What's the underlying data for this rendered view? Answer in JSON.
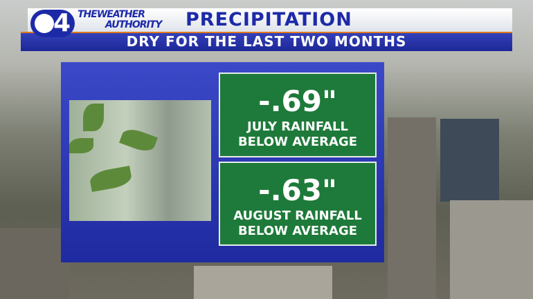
{
  "header": {
    "logo": "4",
    "brand": [
      "THEWEATHER",
      "AUTHORITY"
    ],
    "title": "PRECIPITATION",
    "subtitle": "DRY FOR THE LAST TWO MONTHS"
  },
  "stats": [
    {
      "value": "-.69\"",
      "label": [
        "JULY RAINFALL",
        "BELOW AVERAGE"
      ]
    },
    {
      "value": "-.63\"",
      "label": [
        "AUGUST RAINFALL",
        "BELOW AVERAGE"
      ]
    }
  ]
}
